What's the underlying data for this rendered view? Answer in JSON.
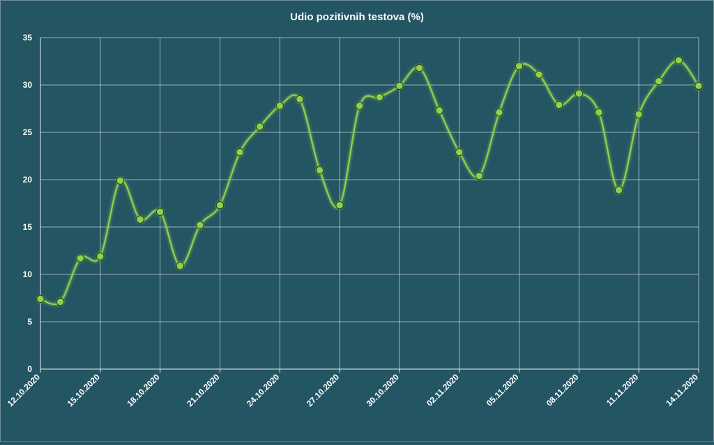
{
  "chart_data": {
    "type": "line",
    "title": "Udio pozitivnih testova (%)",
    "xlabel": "",
    "ylabel": "",
    "ylim": [
      0,
      35
    ],
    "yticks": [
      0,
      5,
      10,
      15,
      20,
      25,
      30,
      35
    ],
    "x": [
      "12.10.2020",
      "13.10.2020",
      "14.10.2020",
      "15.10.2020",
      "16.10.2020",
      "17.10.2020",
      "18.10.2020",
      "19.10.2020",
      "20.10.2020",
      "21.10.2020",
      "22.10.2020",
      "23.10.2020",
      "24.10.2020",
      "25.10.2020",
      "26.10.2020",
      "27.10.2020",
      "28.10.2020",
      "29.10.2020",
      "30.10.2020",
      "31.10.2020",
      "01.11.2020",
      "02.11.2020",
      "03.11.2020",
      "04.11.2020",
      "05.11.2020",
      "06.11.2020",
      "07.11.2020",
      "08.11.2020",
      "09.11.2020",
      "10.11.2020",
      "11.11.2020",
      "12.11.2020",
      "13.11.2020",
      "14.11.2020"
    ],
    "xtick_labels": [
      "12.10.2020",
      "15.10.2020",
      "18.10.2020",
      "21.10.2020",
      "24.10.2020",
      "27.10.2020",
      "30.10.2020",
      "02.11.2020",
      "05.11.2020",
      "08.11.2020",
      "11.11.2020",
      "14.11.2020"
    ],
    "series": [
      {
        "name": "",
        "values": [
          7.4,
          7.1,
          11.7,
          11.9,
          19.9,
          15.8,
          16.6,
          10.9,
          15.2,
          17.3,
          22.9,
          25.6,
          27.8,
          28.5,
          21.0,
          17.3,
          27.8,
          28.7,
          29.9,
          31.8,
          27.3,
          22.9,
          20.4,
          27.1,
          32.0,
          31.1,
          27.9,
          29.1,
          27.1,
          18.9,
          26.9,
          30.4,
          32.6,
          29.9
        ]
      }
    ],
    "grid": true,
    "legend": "none",
    "colors": {
      "background": "#235563",
      "line": "#8fd14f",
      "grid": "#e8eef0",
      "text": "#ffffff"
    }
  }
}
